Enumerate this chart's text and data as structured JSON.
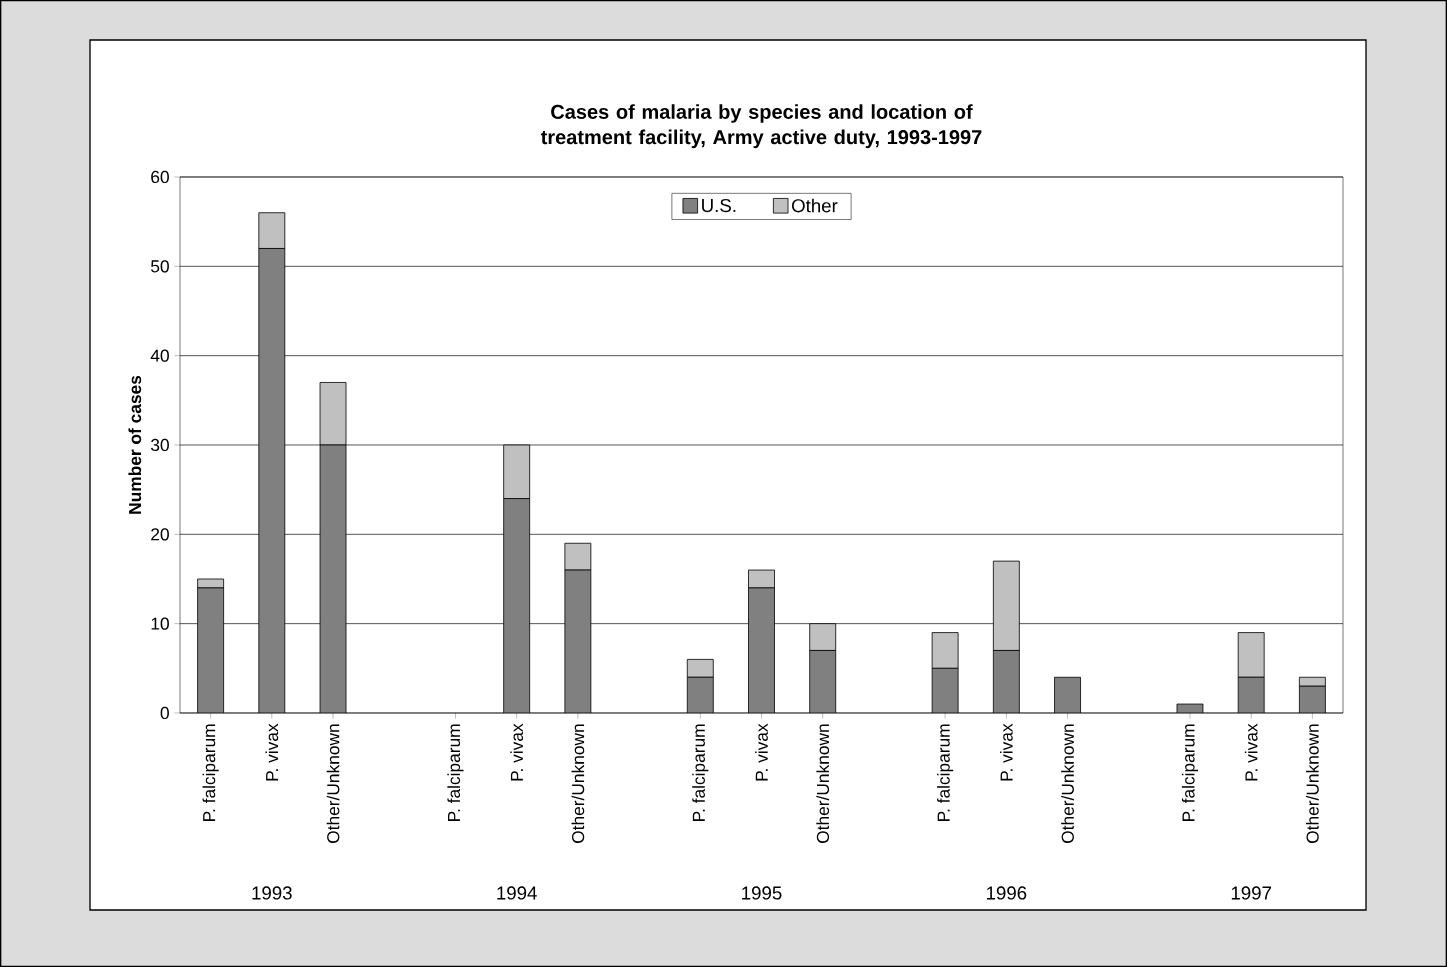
{
  "chart_data": {
    "type": "bar",
    "stacked": true,
    "title": "Cases of malaria by species and location of treatment facility, Army active duty, 1993-1997",
    "ylabel": "Number of cases",
    "categories": [
      "P. falciparum",
      "P. vivax",
      "Other/Unknown",
      null,
      "P. falciparum",
      "P. vivax",
      "Other/Unknown",
      null,
      "P. falciparum",
      "P. vivax",
      "Other/Unknown",
      null,
      "P. falciparum",
      "P. vivax",
      "Other/Unknown",
      null,
      "P. falciparum",
      "P. vivax",
      "Other/Unknown"
    ],
    "series": [
      {
        "name": "U.S.",
        "color": "#808080",
        "values": [
          14,
          52,
          30,
          null,
          0,
          24,
          16,
          null,
          4,
          14,
          7,
          null,
          5,
          7,
          4,
          null,
          1,
          4,
          3
        ]
      },
      {
        "name": "Other",
        "color": "#c0c0c0",
        "values": [
          1,
          4,
          7,
          null,
          0,
          6,
          3,
          null,
          2,
          2,
          3,
          null,
          4,
          10,
          0,
          null,
          0,
          5,
          1
        ]
      }
    ],
    "ylim": [
      0,
      60
    ],
    "yticks": [
      0,
      10,
      20,
      30,
      40,
      50,
      60
    ],
    "grid": "y",
    "legend": "top",
    "annotations": [
      "1993",
      "1994",
      "1995",
      "1996",
      "1997"
    ]
  }
}
